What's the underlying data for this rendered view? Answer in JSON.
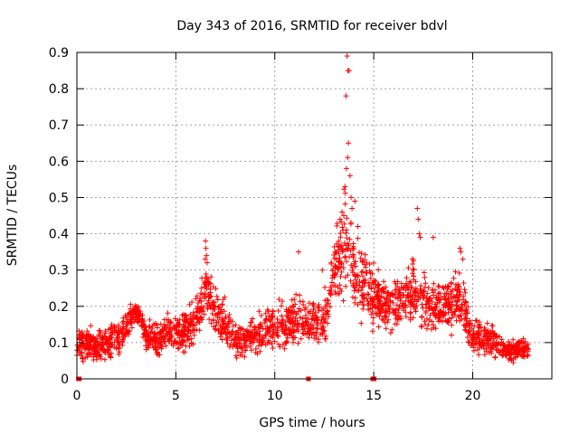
{
  "chart_data": {
    "type": "scatter",
    "title": "Day 343 of 2016, SRMTID for receiver bdvl",
    "xlabel": "GPS time / hours",
    "ylabel": "SRMTID / TECUs",
    "xlim": [
      0,
      24
    ],
    "ylim": [
      0,
      0.9
    ],
    "x_ticks": [
      0,
      5,
      10,
      15,
      20
    ],
    "x_tick_labels": [
      "0",
      "5",
      "10",
      "15",
      "20"
    ],
    "y_ticks": [
      0,
      0.1,
      0.2,
      0.3,
      0.4,
      0.5,
      0.6,
      0.7,
      0.8,
      0.9
    ],
    "y_tick_labels": [
      "0",
      "0.1",
      "0.2",
      "0.3",
      "0.4",
      "0.5",
      "0.6",
      "0.7",
      "0.8",
      "0.9"
    ],
    "grid": true,
    "legend": "none",
    "series": [
      {
        "name": "SRMTID",
        "color": "#ff0000",
        "marker": "plus",
        "envelope": [
          [
            0.0,
            0.1,
            0.03
          ],
          [
            0.5,
            0.1,
            0.03
          ],
          [
            1.0,
            0.09,
            0.03
          ],
          [
            1.5,
            0.1,
            0.03
          ],
          [
            2.0,
            0.11,
            0.03
          ],
          [
            2.5,
            0.14,
            0.03
          ],
          [
            3.0,
            0.19,
            0.02
          ],
          [
            3.5,
            0.12,
            0.03
          ],
          [
            4.0,
            0.11,
            0.03
          ],
          [
            4.5,
            0.13,
            0.03
          ],
          [
            5.0,
            0.12,
            0.04
          ],
          [
            5.5,
            0.13,
            0.04
          ],
          [
            6.0,
            0.16,
            0.04
          ],
          [
            6.5,
            0.26,
            0.05
          ],
          [
            7.0,
            0.18,
            0.04
          ],
          [
            7.5,
            0.15,
            0.04
          ],
          [
            8.0,
            0.1,
            0.03
          ],
          [
            8.5,
            0.11,
            0.03
          ],
          [
            9.0,
            0.12,
            0.03
          ],
          [
            9.5,
            0.13,
            0.04
          ],
          [
            10.0,
            0.15,
            0.04
          ],
          [
            10.5,
            0.14,
            0.04
          ],
          [
            11.0,
            0.17,
            0.04
          ],
          [
            11.5,
            0.16,
            0.04
          ],
          [
            12.0,
            0.15,
            0.04
          ],
          [
            12.5,
            0.17,
            0.05
          ],
          [
            13.0,
            0.3,
            0.08
          ],
          [
            13.5,
            0.38,
            0.1
          ],
          [
            14.0,
            0.3,
            0.08
          ],
          [
            14.5,
            0.26,
            0.07
          ],
          [
            15.0,
            0.22,
            0.05
          ],
          [
            15.5,
            0.2,
            0.05
          ],
          [
            16.0,
            0.21,
            0.05
          ],
          [
            16.5,
            0.21,
            0.05
          ],
          [
            17.0,
            0.24,
            0.06
          ],
          [
            17.5,
            0.22,
            0.05
          ],
          [
            18.0,
            0.2,
            0.05
          ],
          [
            18.5,
            0.2,
            0.05
          ],
          [
            19.0,
            0.22,
            0.05
          ],
          [
            19.5,
            0.21,
            0.05
          ],
          [
            20.0,
            0.12,
            0.03
          ],
          [
            20.5,
            0.11,
            0.03
          ],
          [
            21.0,
            0.1,
            0.03
          ],
          [
            21.5,
            0.08,
            0.02
          ],
          [
            22.0,
            0.08,
            0.02
          ],
          [
            22.5,
            0.08,
            0.02
          ],
          [
            22.8,
            0.08,
            0.02
          ]
        ],
        "peaks": [
          [
            13.65,
            0.89
          ],
          [
            13.7,
            0.85
          ],
          [
            13.75,
            0.85
          ],
          [
            13.6,
            0.78
          ],
          [
            13.72,
            0.65
          ],
          [
            13.68,
            0.61
          ],
          [
            13.62,
            0.58
          ],
          [
            13.8,
            0.56
          ],
          [
            13.55,
            0.53
          ],
          [
            13.85,
            0.5
          ],
          [
            14.05,
            0.49
          ],
          [
            13.9,
            0.47
          ],
          [
            13.4,
            0.46
          ],
          [
            13.3,
            0.44
          ],
          [
            14.2,
            0.42
          ],
          [
            6.5,
            0.38
          ],
          [
            6.52,
            0.36
          ],
          [
            6.55,
            0.34
          ],
          [
            6.48,
            0.33
          ],
          [
            6.58,
            0.32
          ],
          [
            17.2,
            0.47
          ],
          [
            17.25,
            0.44
          ],
          [
            17.3,
            0.4
          ],
          [
            17.35,
            0.39
          ],
          [
            18.0,
            0.39
          ],
          [
            19.35,
            0.36
          ],
          [
            19.4,
            0.35
          ],
          [
            19.5,
            0.33
          ],
          [
            11.2,
            0.35
          ],
          [
            12.4,
            0.3
          ]
        ],
        "zeros": [
          0.08,
          0.12,
          11.7,
          14.95,
          15.02
        ]
      }
    ]
  }
}
